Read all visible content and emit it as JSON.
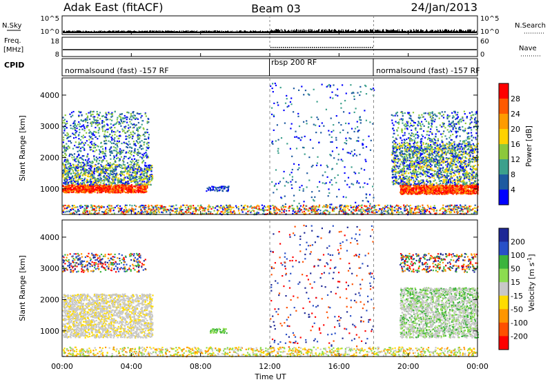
{
  "header": {
    "title": "Adak East (fitACF)",
    "beam": "Beam 03",
    "date": "24/Jan/2013"
  },
  "chart_data": [
    {
      "type": "line",
      "panel": "noise",
      "left_label": "N.Sky",
      "right_label": "N.Search",
      "left_ticks": [
        "10^5",
        "10^0"
      ],
      "right_ticks": [
        "10^5",
        "10^0"
      ]
    },
    {
      "type": "line",
      "panel": "frequency",
      "left_label_1": "Freq.",
      "left_label_2": "[MHz]",
      "right_label": "Nave",
      "left_ticks": [
        "18",
        "8"
      ],
      "right_ticks": [
        "60",
        "0"
      ]
    },
    {
      "type": "table",
      "panel": "cpid",
      "label": "CPID",
      "segments": [
        {
          "text": "normalsound (fast) -157 RF",
          "start": 0,
          "end": 12
        },
        {
          "text": "rbsp 200 RF",
          "start": 12,
          "end": 18
        },
        {
          "text": "normalsound (fast) -157 RF",
          "start": 18,
          "end": 24
        }
      ]
    },
    {
      "type": "heatmap",
      "panel": "power",
      "ylabel": "Slant Range [km]",
      "yticks": [
        "4000",
        "3000",
        "2000",
        "1000"
      ],
      "ylim": [
        180,
        4550
      ],
      "colorbar_label": "Power [dB]",
      "colorbar_ticks": [
        "28",
        "24",
        "20",
        "16",
        "12",
        "8",
        "4"
      ],
      "colorbar_colors": [
        "#ff0000",
        "#ff5a00",
        "#ff9b00",
        "#ffd200",
        "#8cc83c",
        "#3ca08c",
        "#1e5aa0",
        "#0000ff"
      ]
    },
    {
      "type": "heatmap",
      "panel": "velocity",
      "ylabel": "Slant Range [km]",
      "yticks": [
        "4000",
        "3000",
        "2000",
        "1000"
      ],
      "ylim": [
        180,
        4550
      ],
      "colorbar_label": "Velocity [m s^-1]",
      "colorbar_ticks": [
        "200",
        "100",
        "50",
        "15",
        "-15",
        "-50",
        "-100",
        "-200"
      ],
      "colorbar_colors": [
        "#1e2896",
        "#2850c8",
        "#3cb43c",
        "#8cdc50",
        "#c8c8c8",
        "#ffdc00",
        "#ff9600",
        "#ff5000",
        "#ff0000"
      ]
    }
  ],
  "xaxis": {
    "label": "Time UT",
    "ticks": [
      "00:00",
      "04:00",
      "08:00",
      "12:00",
      "16:00",
      "20:00",
      "00:00"
    ]
  }
}
